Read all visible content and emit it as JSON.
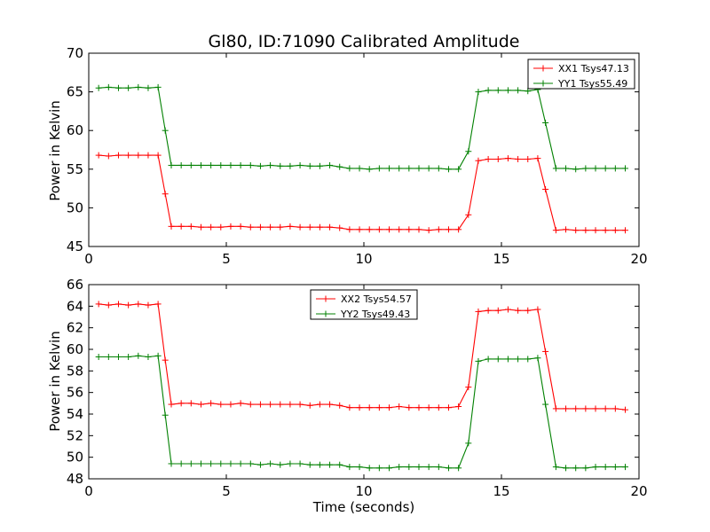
{
  "chart_data": [
    {
      "type": "line",
      "title": "Gl80, ID:71090 Calibrated Amplitude",
      "xlabel": "",
      "ylabel": "Power in Kelvin",
      "xlim": [
        0,
        20
      ],
      "ylim": [
        45,
        70
      ],
      "xticks": [
        "0",
        "5",
        "10",
        "15",
        "20"
      ],
      "yticks": [
        "45",
        "50",
        "55",
        "60",
        "65",
        "70"
      ],
      "legend_position": "top-right",
      "x": [
        0.36,
        0.72,
        1.08,
        1.44,
        1.8,
        2.16,
        2.52,
        2.78,
        3.0,
        3.36,
        3.72,
        4.08,
        4.44,
        4.8,
        5.16,
        5.52,
        5.88,
        6.24,
        6.6,
        6.96,
        7.32,
        7.68,
        8.04,
        8.4,
        8.76,
        9.12,
        9.48,
        9.84,
        10.2,
        10.56,
        10.92,
        11.28,
        11.64,
        12.0,
        12.36,
        12.72,
        13.08,
        13.44,
        13.8,
        14.16,
        14.52,
        14.88,
        15.24,
        15.6,
        15.96,
        16.32,
        16.6,
        16.98,
        17.34,
        17.7,
        18.06,
        18.42,
        18.78,
        19.14,
        19.5
      ],
      "series": [
        {
          "name": "XX1 Tsys47.13",
          "color": "#ff0000",
          "values": [
            56.8,
            56.7,
            56.8,
            56.8,
            56.8,
            56.8,
            56.8,
            51.8,
            47.6,
            47.6,
            47.6,
            47.5,
            47.5,
            47.5,
            47.6,
            47.6,
            47.5,
            47.5,
            47.5,
            47.5,
            47.6,
            47.5,
            47.5,
            47.5,
            47.5,
            47.4,
            47.2,
            47.2,
            47.2,
            47.2,
            47.2,
            47.2,
            47.2,
            47.2,
            47.1,
            47.2,
            47.2,
            47.2,
            49.1,
            56.1,
            56.3,
            56.3,
            56.4,
            56.3,
            56.3,
            56.4,
            52.4,
            47.1,
            47.2,
            47.1,
            47.1,
            47.1,
            47.1,
            47.1,
            47.1
          ]
        },
        {
          "name": "YY1 Tsys55.49",
          "color": "#008000",
          "values": [
            65.5,
            65.6,
            65.5,
            65.5,
            65.6,
            65.5,
            65.6,
            60.0,
            55.5,
            55.5,
            55.5,
            55.5,
            55.5,
            55.5,
            55.5,
            55.5,
            55.5,
            55.4,
            55.5,
            55.4,
            55.4,
            55.5,
            55.4,
            55.4,
            55.5,
            55.3,
            55.1,
            55.1,
            55.0,
            55.1,
            55.1,
            55.1,
            55.1,
            55.1,
            55.1,
            55.1,
            55.0,
            55.0,
            57.3,
            65.0,
            65.2,
            65.2,
            65.2,
            65.2,
            65.1,
            65.3,
            61.0,
            55.1,
            55.1,
            55.0,
            55.1,
            55.1,
            55.1,
            55.1,
            55.1
          ]
        }
      ]
    },
    {
      "type": "line",
      "title": "",
      "xlabel": "Time (seconds)",
      "ylabel": "Power in Kelvin",
      "xlim": [
        0,
        20
      ],
      "ylim": [
        48,
        66
      ],
      "xticks": [
        "0",
        "5",
        "10",
        "15",
        "20"
      ],
      "yticks": [
        "48",
        "50",
        "52",
        "54",
        "56",
        "58",
        "60",
        "62",
        "64",
        "66"
      ],
      "legend_position": "top-center",
      "x": [
        0.36,
        0.72,
        1.08,
        1.44,
        1.8,
        2.16,
        2.52,
        2.78,
        3.0,
        3.36,
        3.72,
        4.08,
        4.44,
        4.8,
        5.16,
        5.52,
        5.88,
        6.24,
        6.6,
        6.96,
        7.32,
        7.68,
        8.04,
        8.4,
        8.76,
        9.12,
        9.48,
        9.84,
        10.2,
        10.56,
        10.92,
        11.28,
        11.64,
        12.0,
        12.36,
        12.72,
        13.08,
        13.44,
        13.8,
        14.16,
        14.52,
        14.88,
        15.24,
        15.6,
        15.96,
        16.32,
        16.6,
        16.98,
        17.34,
        17.7,
        18.06,
        18.42,
        18.78,
        19.14,
        19.5
      ],
      "series": [
        {
          "name": "XX2 Tsys54.57",
          "color": "#ff0000",
          "values": [
            64.2,
            64.1,
            64.2,
            64.1,
            64.2,
            64.1,
            64.2,
            59.0,
            54.9,
            55.0,
            55.0,
            54.9,
            55.0,
            54.9,
            54.9,
            55.0,
            54.9,
            54.9,
            54.9,
            54.9,
            54.9,
            54.9,
            54.8,
            54.9,
            54.9,
            54.8,
            54.6,
            54.6,
            54.6,
            54.6,
            54.6,
            54.7,
            54.6,
            54.6,
            54.6,
            54.6,
            54.6,
            54.7,
            56.5,
            63.5,
            63.6,
            63.6,
            63.7,
            63.6,
            63.6,
            63.7,
            59.8,
            54.5,
            54.5,
            54.5,
            54.5,
            54.5,
            54.5,
            54.5,
            54.4
          ]
        },
        {
          "name": "YY2 Tsys49.43",
          "color": "#008000",
          "values": [
            59.3,
            59.3,
            59.3,
            59.3,
            59.4,
            59.3,
            59.4,
            53.9,
            49.4,
            49.4,
            49.4,
            49.4,
            49.4,
            49.4,
            49.4,
            49.4,
            49.4,
            49.3,
            49.4,
            49.3,
            49.4,
            49.4,
            49.3,
            49.3,
            49.3,
            49.3,
            49.1,
            49.1,
            49.0,
            49.0,
            49.0,
            49.1,
            49.1,
            49.1,
            49.1,
            49.1,
            49.0,
            49.0,
            51.3,
            58.9,
            59.1,
            59.1,
            59.1,
            59.1,
            59.1,
            59.2,
            54.9,
            49.1,
            49.0,
            49.0,
            49.0,
            49.1,
            49.1,
            49.1,
            49.1
          ]
        }
      ]
    }
  ]
}
